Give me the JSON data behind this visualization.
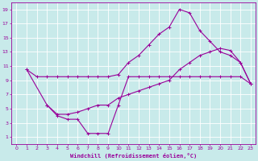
{
  "xlabel": "Windchill (Refroidissement éolien,°C)",
  "bg_color": "#c8eaea",
  "line_color": "#990099",
  "grid_color": "#ffffff",
  "xlim": [
    -0.5,
    23.5
  ],
  "ylim": [
    0,
    20
  ],
  "xticks": [
    0,
    1,
    2,
    3,
    4,
    5,
    6,
    7,
    8,
    9,
    10,
    11,
    12,
    13,
    14,
    15,
    16,
    17,
    18,
    19,
    20,
    21,
    22,
    23
  ],
  "yticks": [
    1,
    3,
    5,
    7,
    9,
    11,
    13,
    15,
    17,
    19
  ],
  "curve1_x": [
    1,
    2,
    3,
    4,
    5,
    6,
    7,
    8,
    9,
    10,
    11,
    12,
    13,
    14,
    15,
    16,
    17,
    18,
    19,
    20,
    21,
    22,
    23
  ],
  "curve1_y": [
    10.5,
    9.5,
    9.5,
    9.5,
    9.5,
    9.5,
    9.5,
    9.5,
    9.5,
    9.8,
    11.5,
    12.5,
    14.0,
    15.5,
    16.5,
    19.0,
    18.5,
    16.0,
    14.5,
    13.0,
    12.5,
    11.5,
    8.5
  ],
  "curve2_x": [
    1,
    3,
    4,
    5,
    6,
    7,
    8,
    9,
    10,
    11,
    12,
    13,
    14,
    15,
    16,
    17,
    18,
    19,
    20,
    21,
    22,
    23
  ],
  "curve2_y": [
    10.5,
    5.5,
    4.2,
    4.2,
    4.5,
    5.0,
    5.5,
    5.5,
    6.5,
    7.0,
    7.5,
    8.0,
    8.5,
    9.0,
    10.5,
    11.5,
    12.5,
    13.0,
    13.5,
    13.2,
    11.5,
    8.5
  ],
  "curve3_x": [
    3,
    4,
    5,
    6,
    7,
    8,
    9,
    10,
    11,
    12,
    13,
    14,
    15,
    16,
    17,
    18,
    19,
    20,
    21,
    22,
    23
  ],
  "curve3_y": [
    5.5,
    4.0,
    3.5,
    3.5,
    1.5,
    1.5,
    1.5,
    5.5,
    9.5,
    9.5,
    9.5,
    9.5,
    9.5,
    9.5,
    9.5,
    9.5,
    9.5,
    9.5,
    9.5,
    9.5,
    8.5
  ]
}
